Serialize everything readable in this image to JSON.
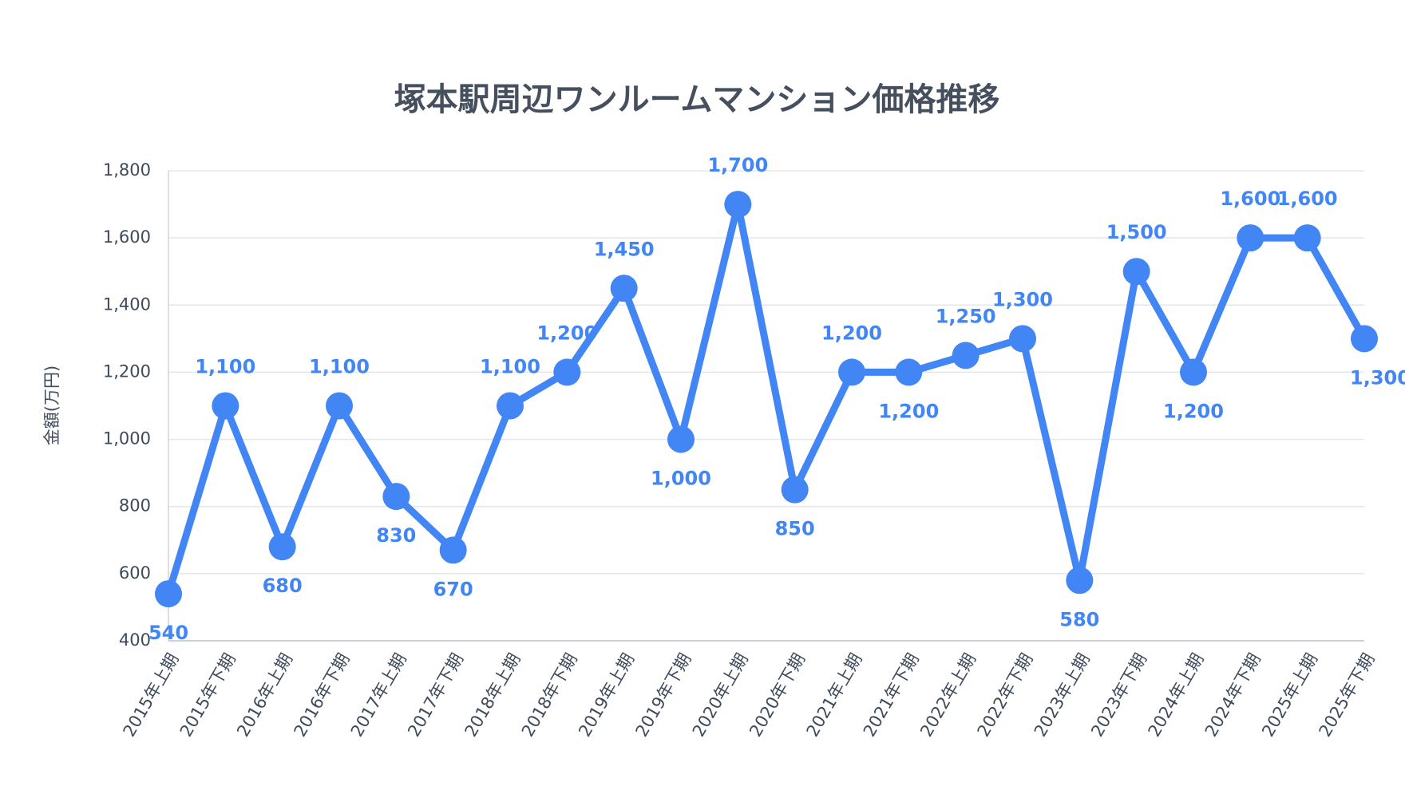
{
  "chart_data": {
    "type": "line",
    "title": "塚本駅周辺ワンルームマンション価格推移",
    "y_label": "金額(万円)",
    "categories": [
      "2015年上期",
      "2015年下期",
      "2016年上期",
      "2016年下期",
      "2017年上期",
      "2017年下期",
      "2018年上期",
      "2018年下期",
      "2019年上期",
      "2019年下期",
      "2020年上期",
      "2020年下期",
      "2021年上期",
      "2021年下期",
      "2022年上期",
      "2022年下期",
      "2023年上期",
      "2023年下期",
      "2024年上期",
      "2024年下期",
      "2025年上期",
      "2025年下期"
    ],
    "series": [
      {
        "name": "金額",
        "color": "#4285f4",
        "values": [
          540,
          1100,
          680,
          1100,
          830,
          670,
          1100,
          1200,
          1450,
          1000,
          1700,
          850,
          1200,
          1200,
          1250,
          1300,
          580,
          1500,
          1200,
          1600,
          1600,
          1300
        ],
        "value_labels": [
          "540",
          "1,100",
          "680",
          "1,100",
          "830",
          "670",
          "1,100",
          "1,200",
          "1,450",
          "1,000",
          "1,700",
          "850",
          "1,200",
          "1,200",
          "1,250",
          "1,300",
          "580",
          "1,500",
          "1,200",
          "1,600",
          "1,600",
          "1,300"
        ]
      }
    ],
    "ylim": [
      400,
      1800
    ],
    "yticks": [
      400,
      600,
      800,
      {
        "value": 1000,
        "label": "1,000"
      },
      {
        "value": 1200,
        "label": "1,200"
      },
      {
        "value": 1400,
        "label": "1,400"
      },
      {
        "value": 1600,
        "label": "1,600"
      },
      {
        "value": 1800,
        "label": "1,800"
      }
    ],
    "grid": true
  }
}
